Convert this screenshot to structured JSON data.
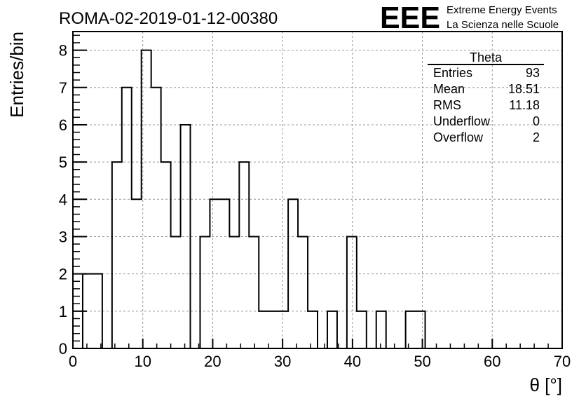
{
  "title": "ROMA-02-2019-01-12-00380",
  "logo": {
    "text": "EEE",
    "line1": "Extreme Energy Events",
    "line2": "La Scienza nelle Scuole",
    "color": "#1a1aff"
  },
  "stats": {
    "name": "Theta",
    "rows": [
      {
        "label": "Entries",
        "value": "93"
      },
      {
        "label": "Mean",
        "value": "18.51"
      },
      {
        "label": "RMS",
        "value": "11.18"
      },
      {
        "label": "Underflow",
        "value": "0"
      },
      {
        "label": "Overflow",
        "value": "2"
      }
    ]
  },
  "chart_data": {
    "type": "histogram",
    "title": "ROMA-02-2019-01-12-00380",
    "xlabel": "θ [°]",
    "ylabel": "Entries/bin",
    "xlim": [
      0,
      70
    ],
    "ylim": [
      0,
      8.5
    ],
    "grid": true,
    "bin_width": 1.4,
    "bin_start": 1.4,
    "values": [
      2,
      2,
      0,
      5,
      7,
      4,
      8,
      7,
      5,
      3,
      6,
      0,
      3,
      4,
      4,
      3,
      5,
      3,
      1,
      1,
      1,
      4,
      3,
      1,
      0,
      1,
      0,
      3,
      1,
      0,
      1,
      0,
      0,
      1,
      1
    ],
    "xticks": [
      0,
      10,
      20,
      30,
      40,
      50,
      60,
      70
    ],
    "yticks": [
      0,
      1,
      2,
      3,
      4,
      5,
      6,
      7,
      8
    ],
    "line_color": "#000000",
    "grid_color": "#999999"
  }
}
